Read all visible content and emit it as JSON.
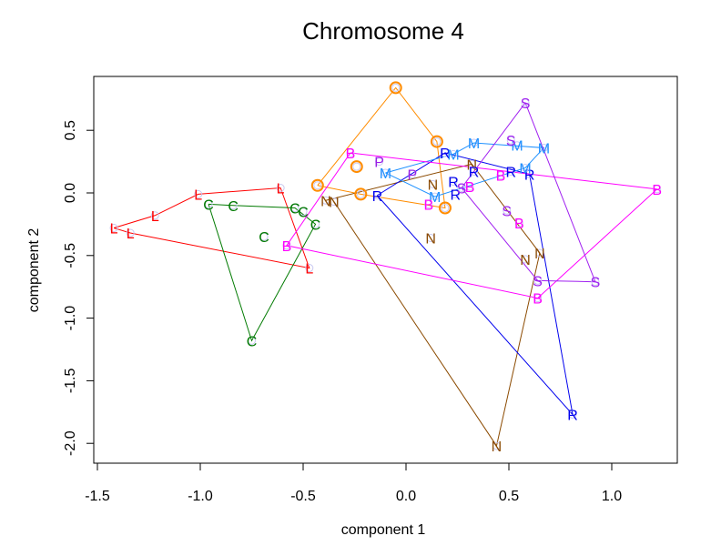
{
  "chart_data": {
    "type": "scatter",
    "title": "Chromosome 4",
    "xlabel": "component 1",
    "ylabel": "component 2",
    "xlim": [
      -1.53,
      1.32
    ],
    "ylim": [
      -2.16,
      0.93
    ],
    "xticks": [
      -1.5,
      -1.0,
      -0.5,
      0.0,
      0.5,
      1.0
    ],
    "xtick_labels": [
      "-1.5",
      "-1.0",
      "-0.5",
      "0.0",
      "0.5",
      "1.0"
    ],
    "yticks": [
      0.5,
      0.0,
      -0.5,
      -1.0,
      -1.5,
      -2.0
    ],
    "ytick_labels": [
      "0.5",
      "0.0",
      "-0.5",
      "-1.0",
      "-1.5",
      "-2.0"
    ],
    "grid": false,
    "legend": "none",
    "series": [
      {
        "name": "L",
        "color": "#ff0000",
        "points": [
          [
            -1.42,
            -0.28
          ],
          [
            -1.22,
            -0.18
          ],
          [
            -1.01,
            -0.01
          ],
          [
            -0.61,
            0.04
          ],
          [
            -0.47,
            -0.6
          ],
          [
            -1.34,
            -0.32
          ]
        ],
        "path": [
          0,
          1,
          2,
          3,
          4,
          5,
          0
        ]
      },
      {
        "name": "C",
        "color": "#007a00",
        "points": [
          [
            -0.96,
            -0.09
          ],
          [
            -0.84,
            -0.1
          ],
          [
            -0.54,
            -0.12
          ],
          [
            -0.44,
            -0.25
          ],
          [
            -0.75,
            -1.18
          ],
          [
            -0.5,
            -0.15
          ],
          [
            -0.69,
            -0.35
          ]
        ],
        "path": [
          0,
          1,
          2,
          3,
          4,
          0
        ]
      },
      {
        "name": "O",
        "color": "#ff8c00",
        "marker": "circle",
        "points": [
          [
            -0.43,
            0.06
          ],
          [
            -0.05,
            0.84
          ],
          [
            0.15,
            0.41
          ],
          [
            0.19,
            -0.12
          ],
          [
            -0.22,
            -0.01
          ],
          [
            -0.24,
            0.21
          ]
        ],
        "path": [
          0,
          1,
          2,
          3,
          4,
          0
        ]
      },
      {
        "name": "N",
        "color": "#8b4a00",
        "points": [
          [
            -0.39,
            -0.06
          ],
          [
            0.32,
            0.23
          ],
          [
            0.65,
            -0.48
          ],
          [
            0.44,
            -2.02
          ],
          [
            -0.35,
            -0.07
          ],
          [
            0.13,
            0.07
          ],
          [
            0.12,
            -0.36
          ],
          [
            0.58,
            -0.53
          ]
        ],
        "path": [
          0,
          1,
          2,
          3,
          4
        ]
      },
      {
        "name": "R",
        "color": "#0000ee",
        "points": [
          [
            -0.14,
            -0.02
          ],
          [
            0.19,
            0.32
          ],
          [
            0.6,
            0.15
          ],
          [
            0.81,
            -1.77
          ],
          [
            0.23,
            0.09
          ],
          [
            0.24,
            -0.01
          ],
          [
            0.33,
            0.17
          ],
          [
            0.51,
            0.17
          ]
        ],
        "path": [
          0,
          1,
          2,
          3,
          0
        ]
      },
      {
        "name": "M",
        "color": "#1e90ff",
        "points": [
          [
            -0.1,
            0.16
          ],
          [
            0.23,
            0.31
          ],
          [
            0.33,
            0.4
          ],
          [
            0.67,
            0.36
          ],
          [
            0.58,
            0.2
          ],
          [
            0.14,
            -0.03
          ],
          [
            0.54,
            0.38
          ]
        ],
        "path": [
          0,
          1,
          2,
          3,
          4,
          5,
          0
        ]
      },
      {
        "name": "B",
        "color": "#ff00ff",
        "points": [
          [
            -0.27,
            0.32
          ],
          [
            1.22,
            0.03
          ],
          [
            0.64,
            -0.84
          ],
          [
            -0.58,
            -0.42
          ],
          [
            0.11,
            -0.09
          ],
          [
            0.31,
            0.05
          ],
          [
            0.46,
            0.14
          ],
          [
            0.55,
            -0.24
          ]
        ],
        "path": [
          0,
          1,
          2,
          3,
          0
        ]
      },
      {
        "name": "S",
        "color": "#a020f0",
        "points": [
          [
            0.58,
            0.72
          ],
          [
            0.92,
            -0.71
          ],
          [
            0.64,
            -0.7
          ],
          [
            0.27,
            0.04
          ],
          [
            0.51,
            0.42
          ],
          [
            0.49,
            -0.14
          ]
        ],
        "path": [
          0,
          1,
          2,
          3,
          0
        ]
      },
      {
        "name": "P",
        "color": "#9a1ee6",
        "points": [
          [
            -0.13,
            0.25
          ],
          [
            0.03,
            0.15
          ]
        ],
        "path": []
      }
    ]
  }
}
